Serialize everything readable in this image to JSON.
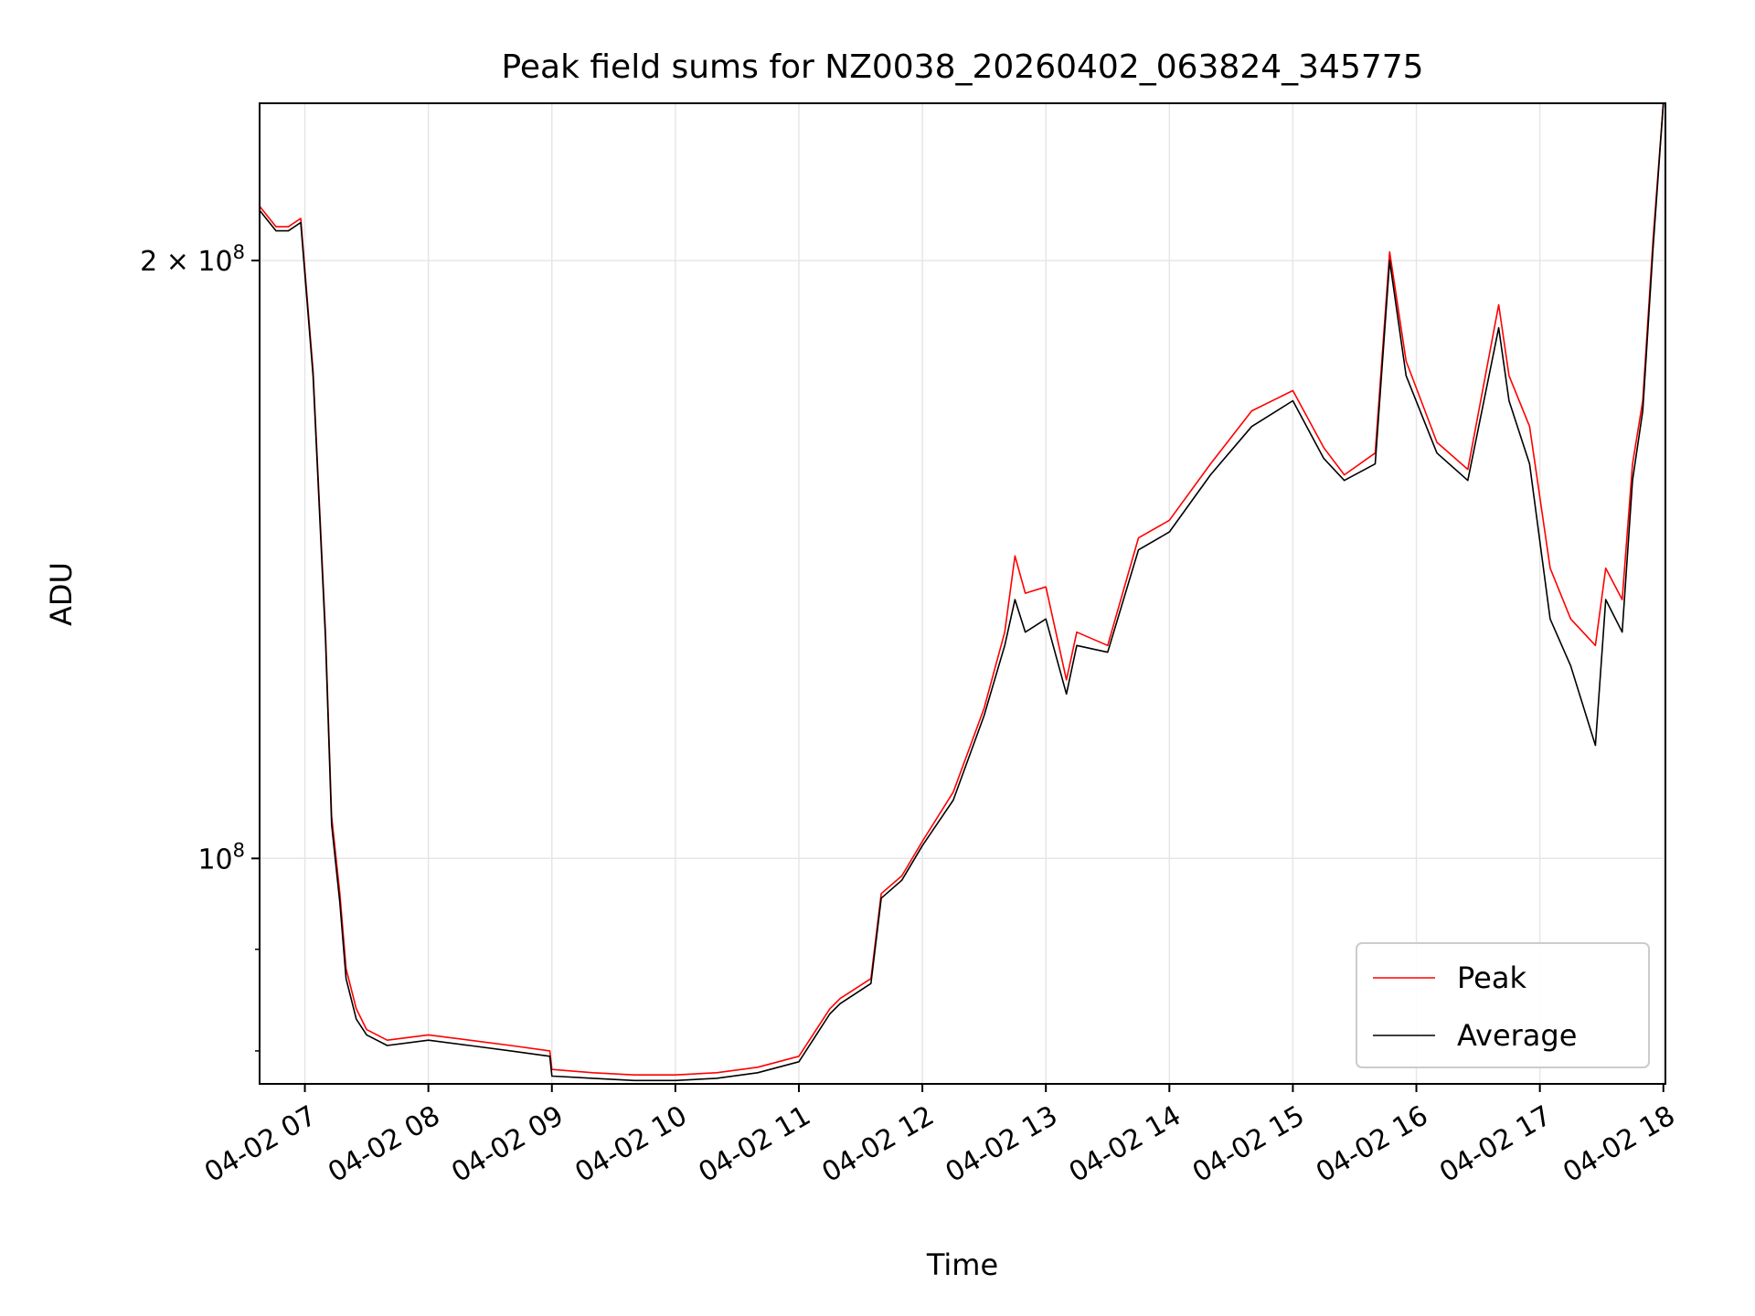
{
  "chart_data": {
    "type": "line",
    "title": "Peak field sums for NZ0038_20260402_063824_345775",
    "xlabel": "Time",
    "ylabel": "ADU",
    "y_scale": "log",
    "ylim": [
      77000000,
      240000000
    ],
    "xlim": [
      "04-02 06:38",
      "04-02 18:01"
    ],
    "grid": true,
    "legend_position": "lower right",
    "x_ticks": [
      "04-02 07",
      "04-02 08",
      "04-02 09",
      "04-02 10",
      "04-02 11",
      "04-02 12",
      "04-02 13",
      "04-02 14",
      "04-02 15",
      "04-02 16",
      "04-02 17",
      "04-02 18"
    ],
    "y_ticks": [
      {
        "value": 100000000,
        "label_base": "10",
        "label_exp": "8"
      },
      {
        "value": 200000000,
        "label_base": "2 × 10",
        "label_exp": "8"
      }
    ],
    "series": [
      {
        "name": "Peak",
        "color": "#ff0000",
        "x": [
          "04-02 06:38",
          "04-02 06:46",
          "04-02 06:52",
          "04-02 06:58",
          "04-02 07:04",
          "04-02 07:10",
          "04-02 07:13",
          "04-02 07:17",
          "04-02 07:20",
          "04-02 07:25",
          "04-02 07:30",
          "04-02 07:40",
          "04-02 08:00",
          "04-02 08:20",
          "04-02 08:40",
          "04-02 08:59",
          "04-02 09:00",
          "04-02 09:20",
          "04-02 09:40",
          "04-02 10:00",
          "04-02 10:20",
          "04-02 10:40",
          "04-02 11:00",
          "04-02 11:15",
          "04-02 11:20",
          "04-02 11:35",
          "04-02 11:40",
          "04-02 11:50",
          "04-02 12:00",
          "04-02 12:15",
          "04-02 12:30",
          "04-02 12:40",
          "04-02 12:45",
          "04-02 12:50",
          "04-02 13:00",
          "04-02 13:10",
          "04-02 13:15",
          "04-02 13:30",
          "04-02 13:45",
          "04-02 14:00",
          "04-02 14:20",
          "04-02 14:40",
          "04-02 15:00",
          "04-02 15:15",
          "04-02 15:25",
          "04-02 15:40",
          "04-02 15:47",
          "04-02 15:55",
          "04-02 16:10",
          "04-02 16:25",
          "04-02 16:40",
          "04-02 16:45",
          "04-02 16:55",
          "04-02 17:05",
          "04-02 17:15",
          "04-02 17:27",
          "04-02 17:32",
          "04-02 17:40",
          "04-02 17:45",
          "04-02 17:50",
          "04-02 17:55",
          "04-02 18:00"
        ],
        "y": [
          213000000,
          208000000,
          208000000,
          210000000,
          176000000,
          130000000,
          105000000,
          96000000,
          88000000,
          84000000,
          82000000,
          81000000,
          81500000,
          81000000,
          80500000,
          80000000,
          78300000,
          78000000,
          77800000,
          77800000,
          78000000,
          78500000,
          79500000,
          84000000,
          85000000,
          87000000,
          96000000,
          98000000,
          102000000,
          108000000,
          119000000,
          130000000,
          142000000,
          136000000,
          137000000,
          123000000,
          130000000,
          128000000,
          145000000,
          148000000,
          158000000,
          168000000,
          172000000,
          161000000,
          156000000,
          160000000,
          202000000,
          178000000,
          162000000,
          157000000,
          190000000,
          175000000,
          165000000,
          140000000,
          132000000,
          128000000,
          140000000,
          135000000,
          158000000,
          170000000,
          205000000,
          240000000
        ]
      },
      {
        "name": "Average",
        "color": "#000000",
        "x": [
          "04-02 06:38",
          "04-02 06:46",
          "04-02 06:52",
          "04-02 06:58",
          "04-02 07:04",
          "04-02 07:10",
          "04-02 07:13",
          "04-02 07:17",
          "04-02 07:20",
          "04-02 07:25",
          "04-02 07:30",
          "04-02 07:40",
          "04-02 08:00",
          "04-02 08:20",
          "04-02 08:40",
          "04-02 08:59",
          "04-02 09:00",
          "04-02 09:20",
          "04-02 09:40",
          "04-02 10:00",
          "04-02 10:20",
          "04-02 10:40",
          "04-02 11:00",
          "04-02 11:15",
          "04-02 11:20",
          "04-02 11:35",
          "04-02 11:40",
          "04-02 11:50",
          "04-02 12:00",
          "04-02 12:15",
          "04-02 12:30",
          "04-02 12:40",
          "04-02 12:45",
          "04-02 12:50",
          "04-02 13:00",
          "04-02 13:10",
          "04-02 13:15",
          "04-02 13:30",
          "04-02 13:45",
          "04-02 14:00",
          "04-02 14:20",
          "04-02 14:40",
          "04-02 15:00",
          "04-02 15:15",
          "04-02 15:25",
          "04-02 15:40",
          "04-02 15:47",
          "04-02 15:55",
          "04-02 16:10",
          "04-02 16:25",
          "04-02 16:40",
          "04-02 16:45",
          "04-02 16:55",
          "04-02 17:05",
          "04-02 17:15",
          "04-02 17:27",
          "04-02 17:32",
          "04-02 17:40",
          "04-02 17:45",
          "04-02 17:50",
          "04-02 17:55",
          "04-02 18:00"
        ],
        "y": [
          212000000,
          207000000,
          207000000,
          209000000,
          175000000,
          129000000,
          104000000,
          95000000,
          87000000,
          83000000,
          81500000,
          80500000,
          81000000,
          80500000,
          80000000,
          79500000,
          77700000,
          77500000,
          77300000,
          77300000,
          77500000,
          78000000,
          79000000,
          83500000,
          84500000,
          86500000,
          95500000,
          97500000,
          101500000,
          107000000,
          118000000,
          128000000,
          135000000,
          130000000,
          132000000,
          121000000,
          128000000,
          127000000,
          143000000,
          146000000,
          156000000,
          165000000,
          170000000,
          159000000,
          155000000,
          158000000,
          200000000,
          175000000,
          160000000,
          155000000,
          185000000,
          170000000,
          158000000,
          132000000,
          125000000,
          114000000,
          135000000,
          130000000,
          155000000,
          168000000,
          203000000,
          240000000
        ]
      }
    ]
  }
}
